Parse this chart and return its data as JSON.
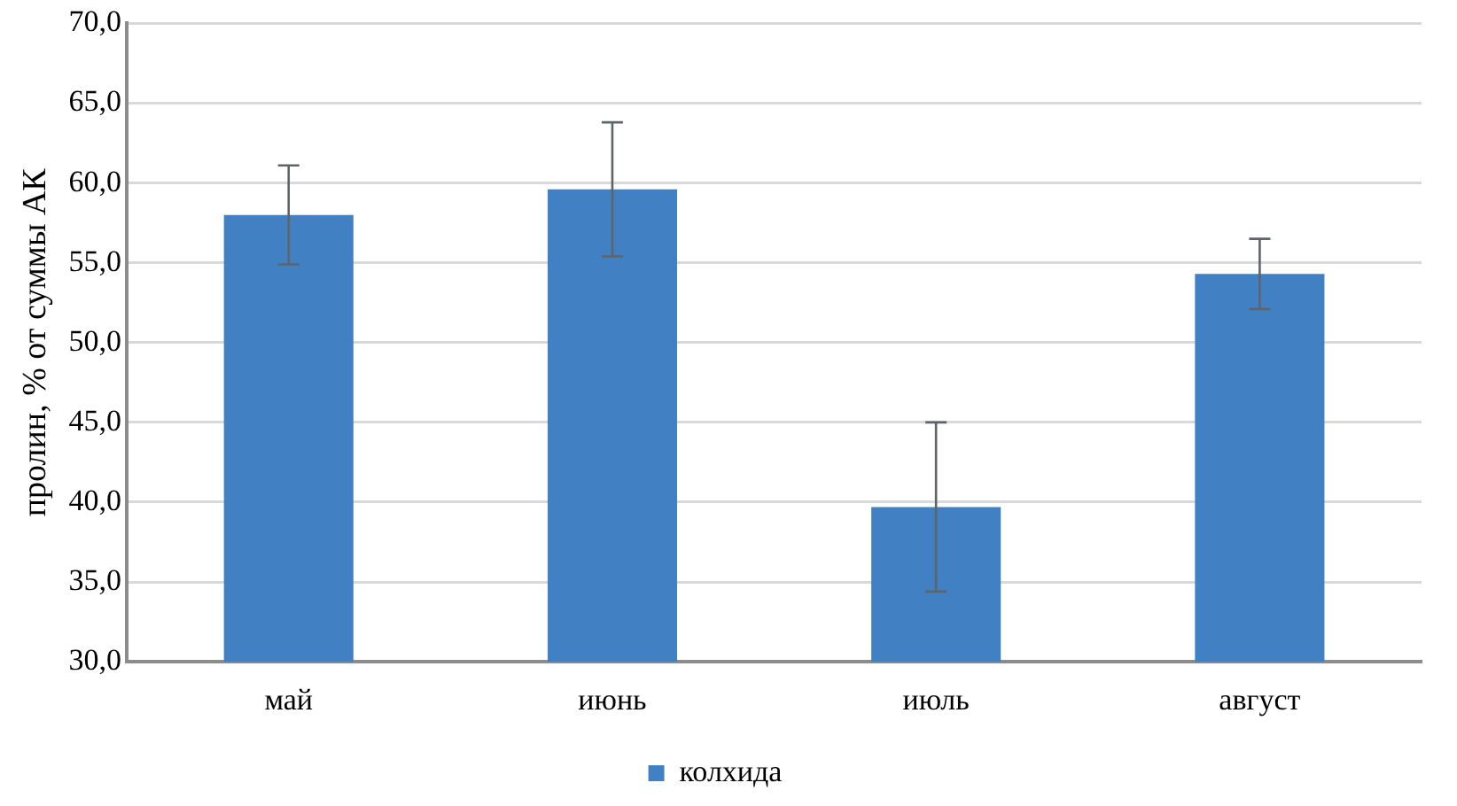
{
  "chart_data": {
    "type": "bar",
    "ylabel": "пролин, % от суммы АК",
    "categories": [
      "май",
      "июнь",
      "июль",
      "август"
    ],
    "series": [
      {
        "name": "колхида",
        "color": "#4180c2",
        "values": [
          58.0,
          59.6,
          39.7,
          54.3
        ],
        "errors": [
          3.1,
          4.2,
          5.3,
          2.2
        ]
      }
    ],
    "ylim": [
      30,
      70
    ],
    "yticks": [
      {
        "value": 30,
        "label": "30,0"
      },
      {
        "value": 35,
        "label": "35,0"
      },
      {
        "value": 40,
        "label": "40,0"
      },
      {
        "value": 45,
        "label": "45,0"
      },
      {
        "value": 50,
        "label": "50,0"
      },
      {
        "value": 55,
        "label": "55,0"
      },
      {
        "value": 60,
        "label": "60,0"
      },
      {
        "value": 65,
        "label": "65,0"
      },
      {
        "value": 70,
        "label": "70,0"
      }
    ],
    "grid": "y",
    "legend": "bottom"
  }
}
